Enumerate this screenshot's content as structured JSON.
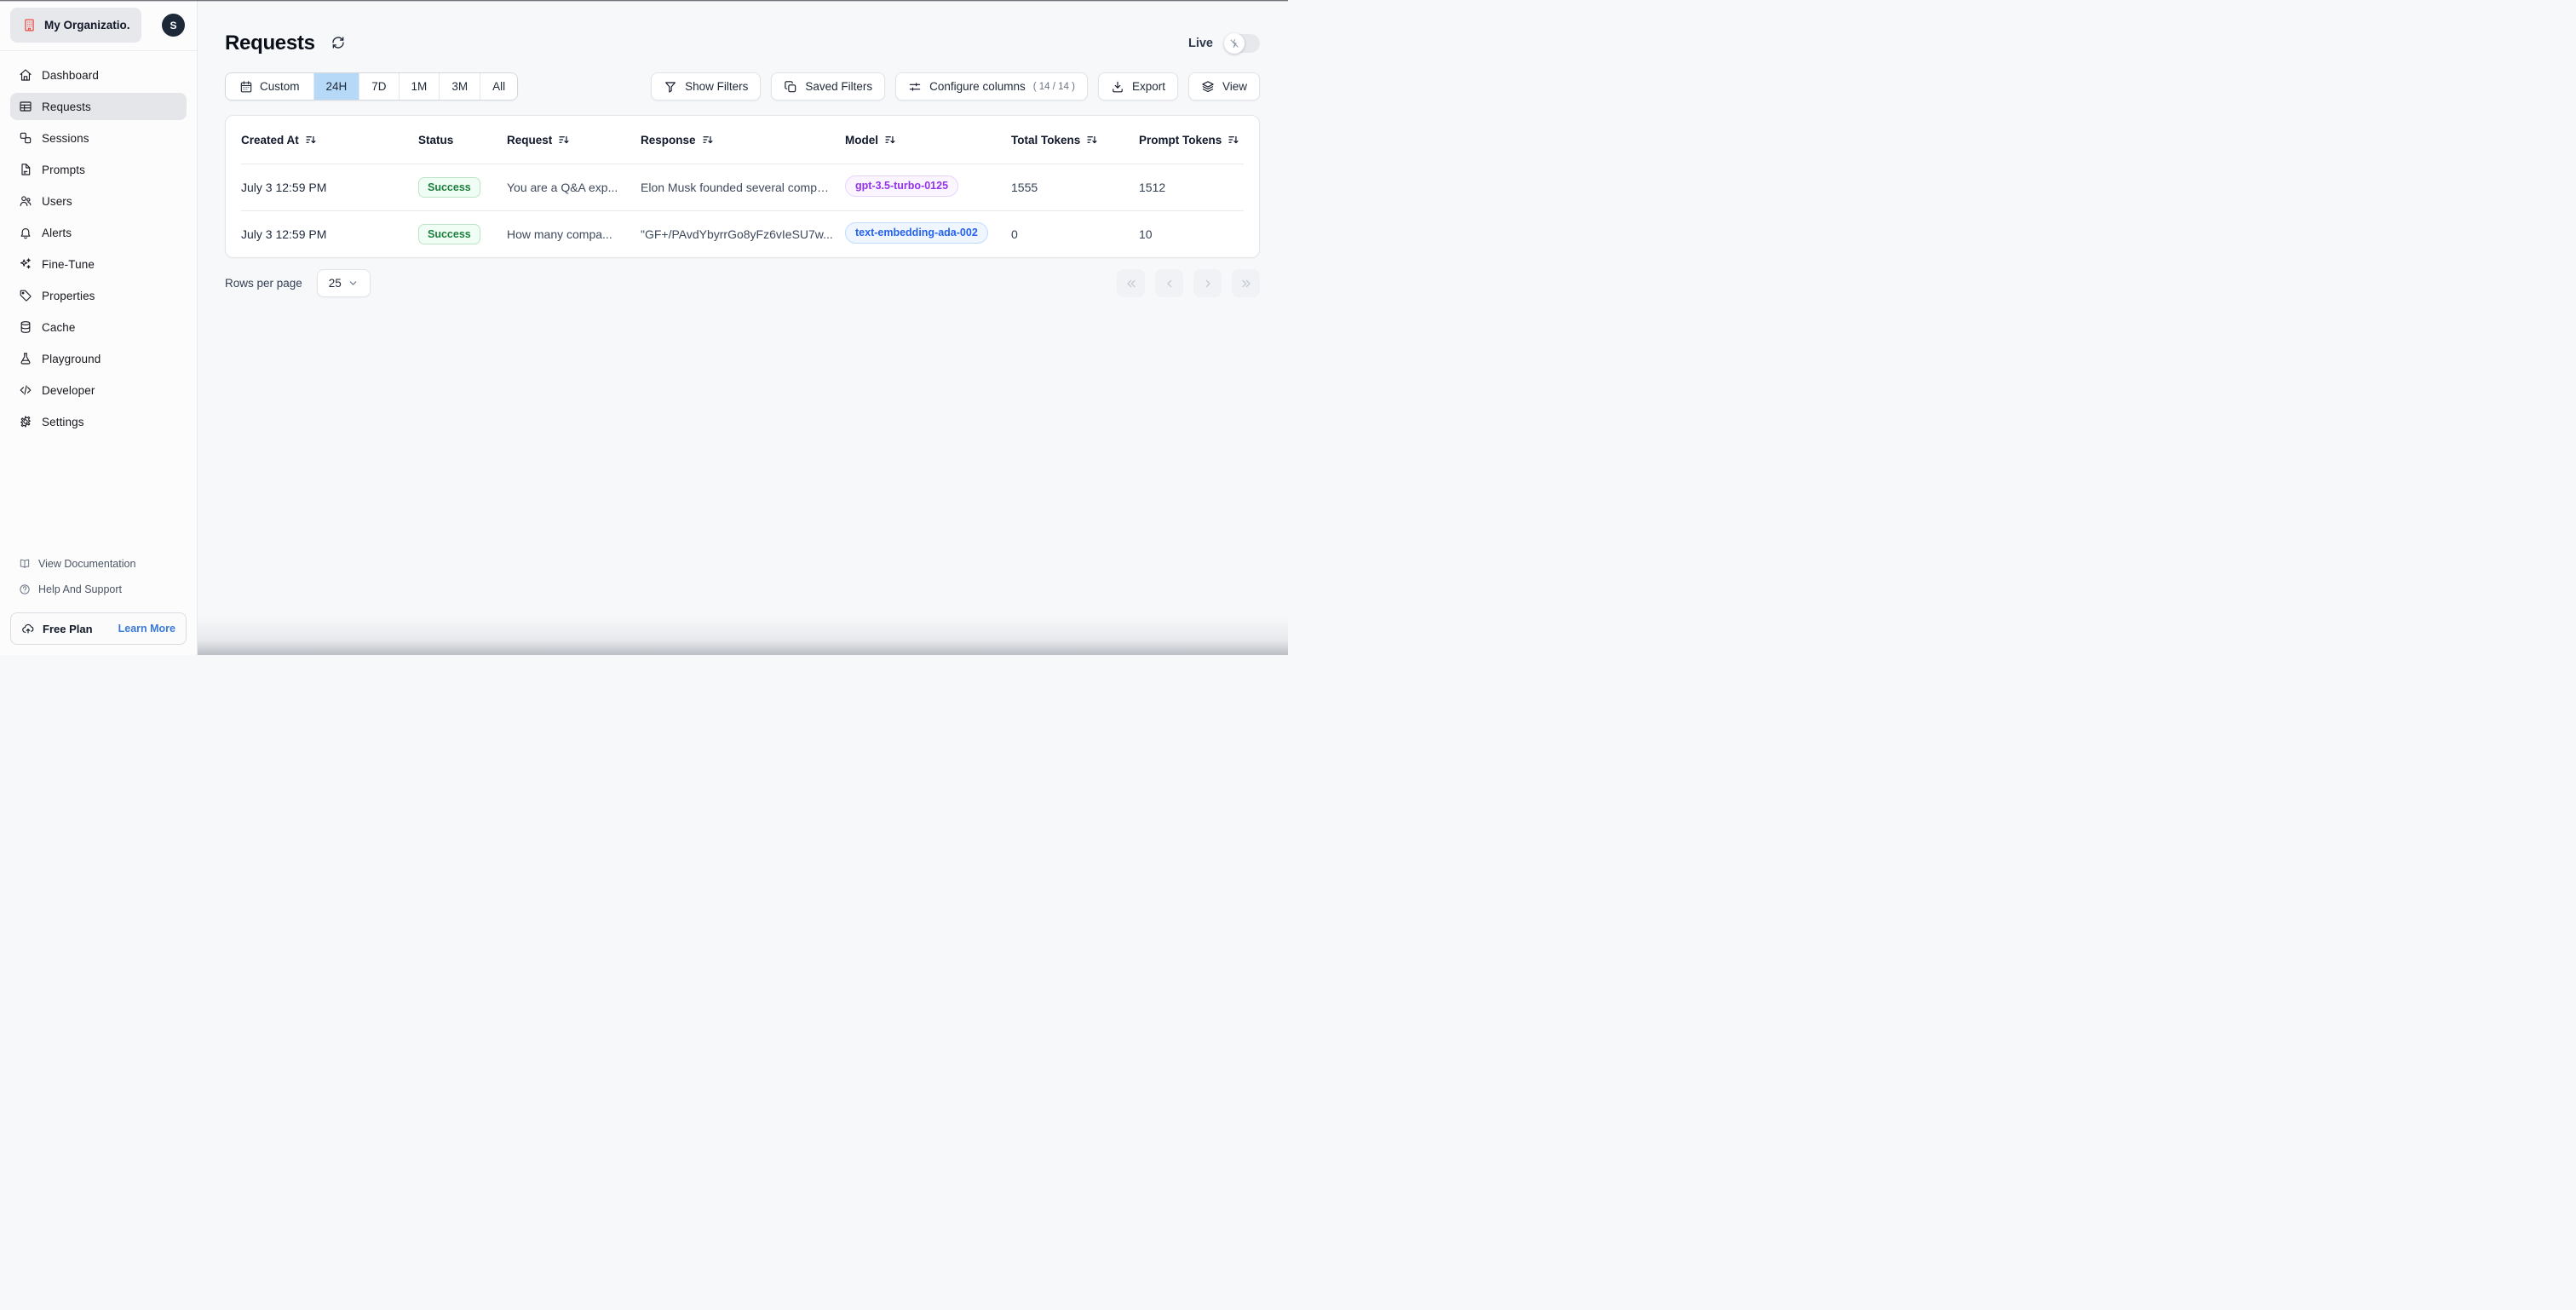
{
  "org": {
    "name": "My Organizatio...",
    "avatar_initial": "S"
  },
  "sidebar": {
    "items": [
      {
        "label": "Dashboard",
        "icon": "home",
        "active": false
      },
      {
        "label": "Requests",
        "icon": "table",
        "active": true
      },
      {
        "label": "Sessions",
        "icon": "sessions",
        "active": false
      },
      {
        "label": "Prompts",
        "icon": "file",
        "active": false
      },
      {
        "label": "Users",
        "icon": "users",
        "active": false
      },
      {
        "label": "Alerts",
        "icon": "bell",
        "active": false
      },
      {
        "label": "Fine-Tune",
        "icon": "sparkles",
        "active": false
      },
      {
        "label": "Properties",
        "icon": "tag",
        "active": false
      },
      {
        "label": "Cache",
        "icon": "database",
        "active": false
      },
      {
        "label": "Playground",
        "icon": "flask",
        "active": false
      },
      {
        "label": "Developer",
        "icon": "code",
        "active": false
      },
      {
        "label": "Settings",
        "icon": "gear",
        "active": false
      }
    ],
    "footer_links": [
      {
        "label": "View Documentation",
        "icon": "book"
      },
      {
        "label": "Help And Support",
        "icon": "help"
      }
    ],
    "plan": {
      "label": "Free Plan",
      "cta": "Learn More",
      "icon": "cloud-up"
    }
  },
  "header": {
    "title": "Requests",
    "live_label": "Live",
    "live_on": false
  },
  "toolbar": {
    "time_ranges": [
      {
        "label": "Custom",
        "icon": "calendar",
        "active": false
      },
      {
        "label": "24H",
        "active": true
      },
      {
        "label": "7D",
        "active": false
      },
      {
        "label": "1M",
        "active": false
      },
      {
        "label": "3M",
        "active": false
      },
      {
        "label": "All",
        "active": false
      }
    ],
    "actions": [
      {
        "label": "Show Filters",
        "icon": "funnel"
      },
      {
        "label": "Saved Filters",
        "icon": "copy"
      },
      {
        "label": "Configure columns",
        "icon": "sliders",
        "suffix": "( 14 / 14 )"
      },
      {
        "label": "Export",
        "icon": "download"
      },
      {
        "label": "View",
        "icon": "layers"
      }
    ]
  },
  "table": {
    "columns": [
      {
        "label": "Created At",
        "sortable": true
      },
      {
        "label": "Status",
        "sortable": false
      },
      {
        "label": "Request",
        "sortable": true
      },
      {
        "label": "Response",
        "sortable": true
      },
      {
        "label": "Model",
        "sortable": true
      },
      {
        "label": "Total Tokens",
        "sortable": true
      },
      {
        "label": "Prompt Tokens",
        "sortable": true
      }
    ],
    "rows": [
      {
        "created_at": "July 3 12:59 PM",
        "status": "Success",
        "request": "You are a Q&A exp...",
        "response": "Elon Musk founded several compa...",
        "model": "gpt-3.5-turbo-0125",
        "model_color": "purple",
        "total_tokens": "1555",
        "prompt_tokens": "1512"
      },
      {
        "created_at": "July 3 12:59 PM",
        "status": "Success",
        "request": "How many compa...",
        "response": "\"GF+/PAvdYbyrrGo8yFz6vIeSU7w...",
        "model": "text-embedding-ada-002",
        "model_color": "blue",
        "total_tokens": "0",
        "prompt_tokens": "10"
      }
    ]
  },
  "pagination": {
    "rows_per_page_label": "Rows per page",
    "rows_per_page_value": "25",
    "buttons": [
      {
        "icon": "chevrons-left",
        "name": "first-page"
      },
      {
        "icon": "chevron-left",
        "name": "prev-page"
      },
      {
        "icon": "chevron-right",
        "name": "next-page"
      },
      {
        "icon": "chevrons-right",
        "name": "last-page"
      }
    ]
  },
  "colors": {
    "accent_selected_range": "#b5d9f7",
    "success_text": "#1a7f3d",
    "success_bg": "#f0fdf4",
    "success_border": "#bce5c8",
    "model_purple_text": "#9333ea",
    "model_purple_bg": "#faf5ff",
    "model_blue_text": "#2563eb",
    "model_blue_bg": "#eff6ff",
    "org_icon_red": "#e8504a",
    "learn_more_blue": "#3879d9",
    "sidebar_selected_bg": "#e4e6ea"
  }
}
